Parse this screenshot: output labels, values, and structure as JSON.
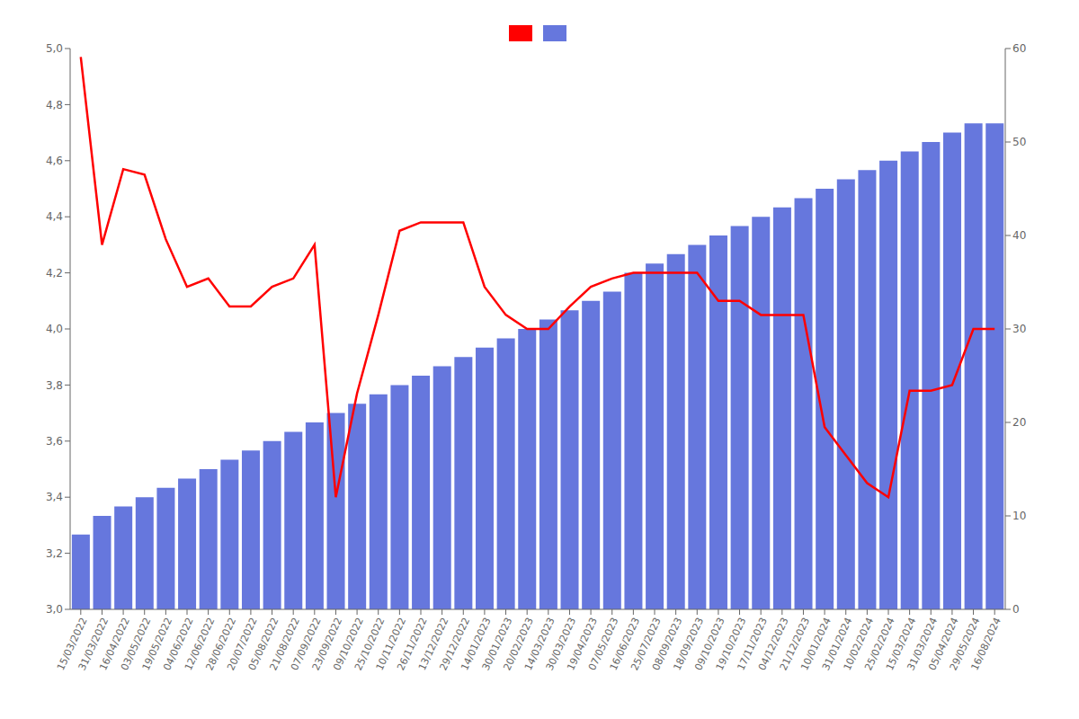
{
  "chart_data": {
    "type": "bar",
    "categories": [
      "15/03/2022",
      "31/03/2022",
      "16/04/2022",
      "03/05/2022",
      "19/05/2022",
      "04/06/2022",
      "12/06/2022",
      "28/06/2022",
      "20/07/2022",
      "05/08/2022",
      "21/08/2022",
      "07/09/2022",
      "23/09/2022",
      "09/10/2022",
      "25/10/2022",
      "10/11/2022",
      "26/11/2022",
      "13/12/2022",
      "29/12/2022",
      "14/01/2023",
      "30/01/2023",
      "20/02/2023",
      "14/03/2023",
      "30/03/2023",
      "19/04/2023",
      "07/05/2023",
      "16/06/2023",
      "25/07/2023",
      "08/09/2023",
      "18/09/2023",
      "09/10/2023",
      "19/10/2023",
      "17/11/2023",
      "04/12/2023",
      "21/12/2023",
      "10/01/2024",
      "31/01/2024",
      "10/02/2024",
      "25/02/2024",
      "15/03/2024",
      "31/03/2024",
      "05/04/2024",
      "29/05/2024",
      "16/08/2024"
    ],
    "series": [
      {
        "type": "line",
        "color": "#ff0000",
        "values": [
          4.97,
          4.3,
          4.57,
          4.55,
          4.32,
          4.15,
          4.18,
          4.08,
          4.08,
          4.15,
          4.18,
          4.3,
          3.4,
          3.77,
          4.05,
          4.35,
          4.38,
          4.38,
          4.38,
          4.15,
          4.05,
          4.0,
          4.0,
          4.08,
          4.15,
          4.18,
          4.2,
          4.2,
          4.2,
          4.2,
          4.1,
          4.1,
          4.05,
          4.05,
          4.05,
          3.65,
          3.55,
          3.45,
          3.4,
          3.78,
          3.78,
          3.8,
          4.0,
          4.0
        ]
      },
      {
        "type": "bar",
        "axis": "y2",
        "color": "#6677dd",
        "values": [
          8,
          10,
          11,
          12,
          13,
          14,
          15,
          16,
          17,
          18,
          19,
          20,
          21,
          22,
          23,
          24,
          25,
          26,
          27,
          28,
          29,
          30,
          31,
          32,
          33,
          34,
          36,
          37,
          38,
          39,
          40,
          41,
          42,
          43,
          44,
          45,
          46,
          47,
          48,
          49,
          50,
          51,
          52,
          52
        ]
      }
    ],
    "ylim": [
      3.0,
      5.0
    ],
    "yticks": [
      {
        "value": 3.0,
        "label": "3,0"
      },
      {
        "value": 3.2,
        "label": "3,2"
      },
      {
        "value": 3.4,
        "label": "3,4"
      },
      {
        "value": 3.6,
        "label": "3,6"
      },
      {
        "value": 3.8,
        "label": "3,8"
      },
      {
        "value": 4.0,
        "label": "4,0"
      },
      {
        "value": 4.2,
        "label": "4,2"
      },
      {
        "value": 4.4,
        "label": "4,4"
      },
      {
        "value": 4.6,
        "label": "4,6"
      },
      {
        "value": 4.8,
        "label": "4,8"
      },
      {
        "value": 5.0,
        "label": "5,0"
      }
    ],
    "y2lim": [
      0,
      60
    ],
    "y2ticks": [
      0,
      10,
      20,
      30,
      40,
      50,
      60
    ],
    "grid": false,
    "legend": "top"
  }
}
